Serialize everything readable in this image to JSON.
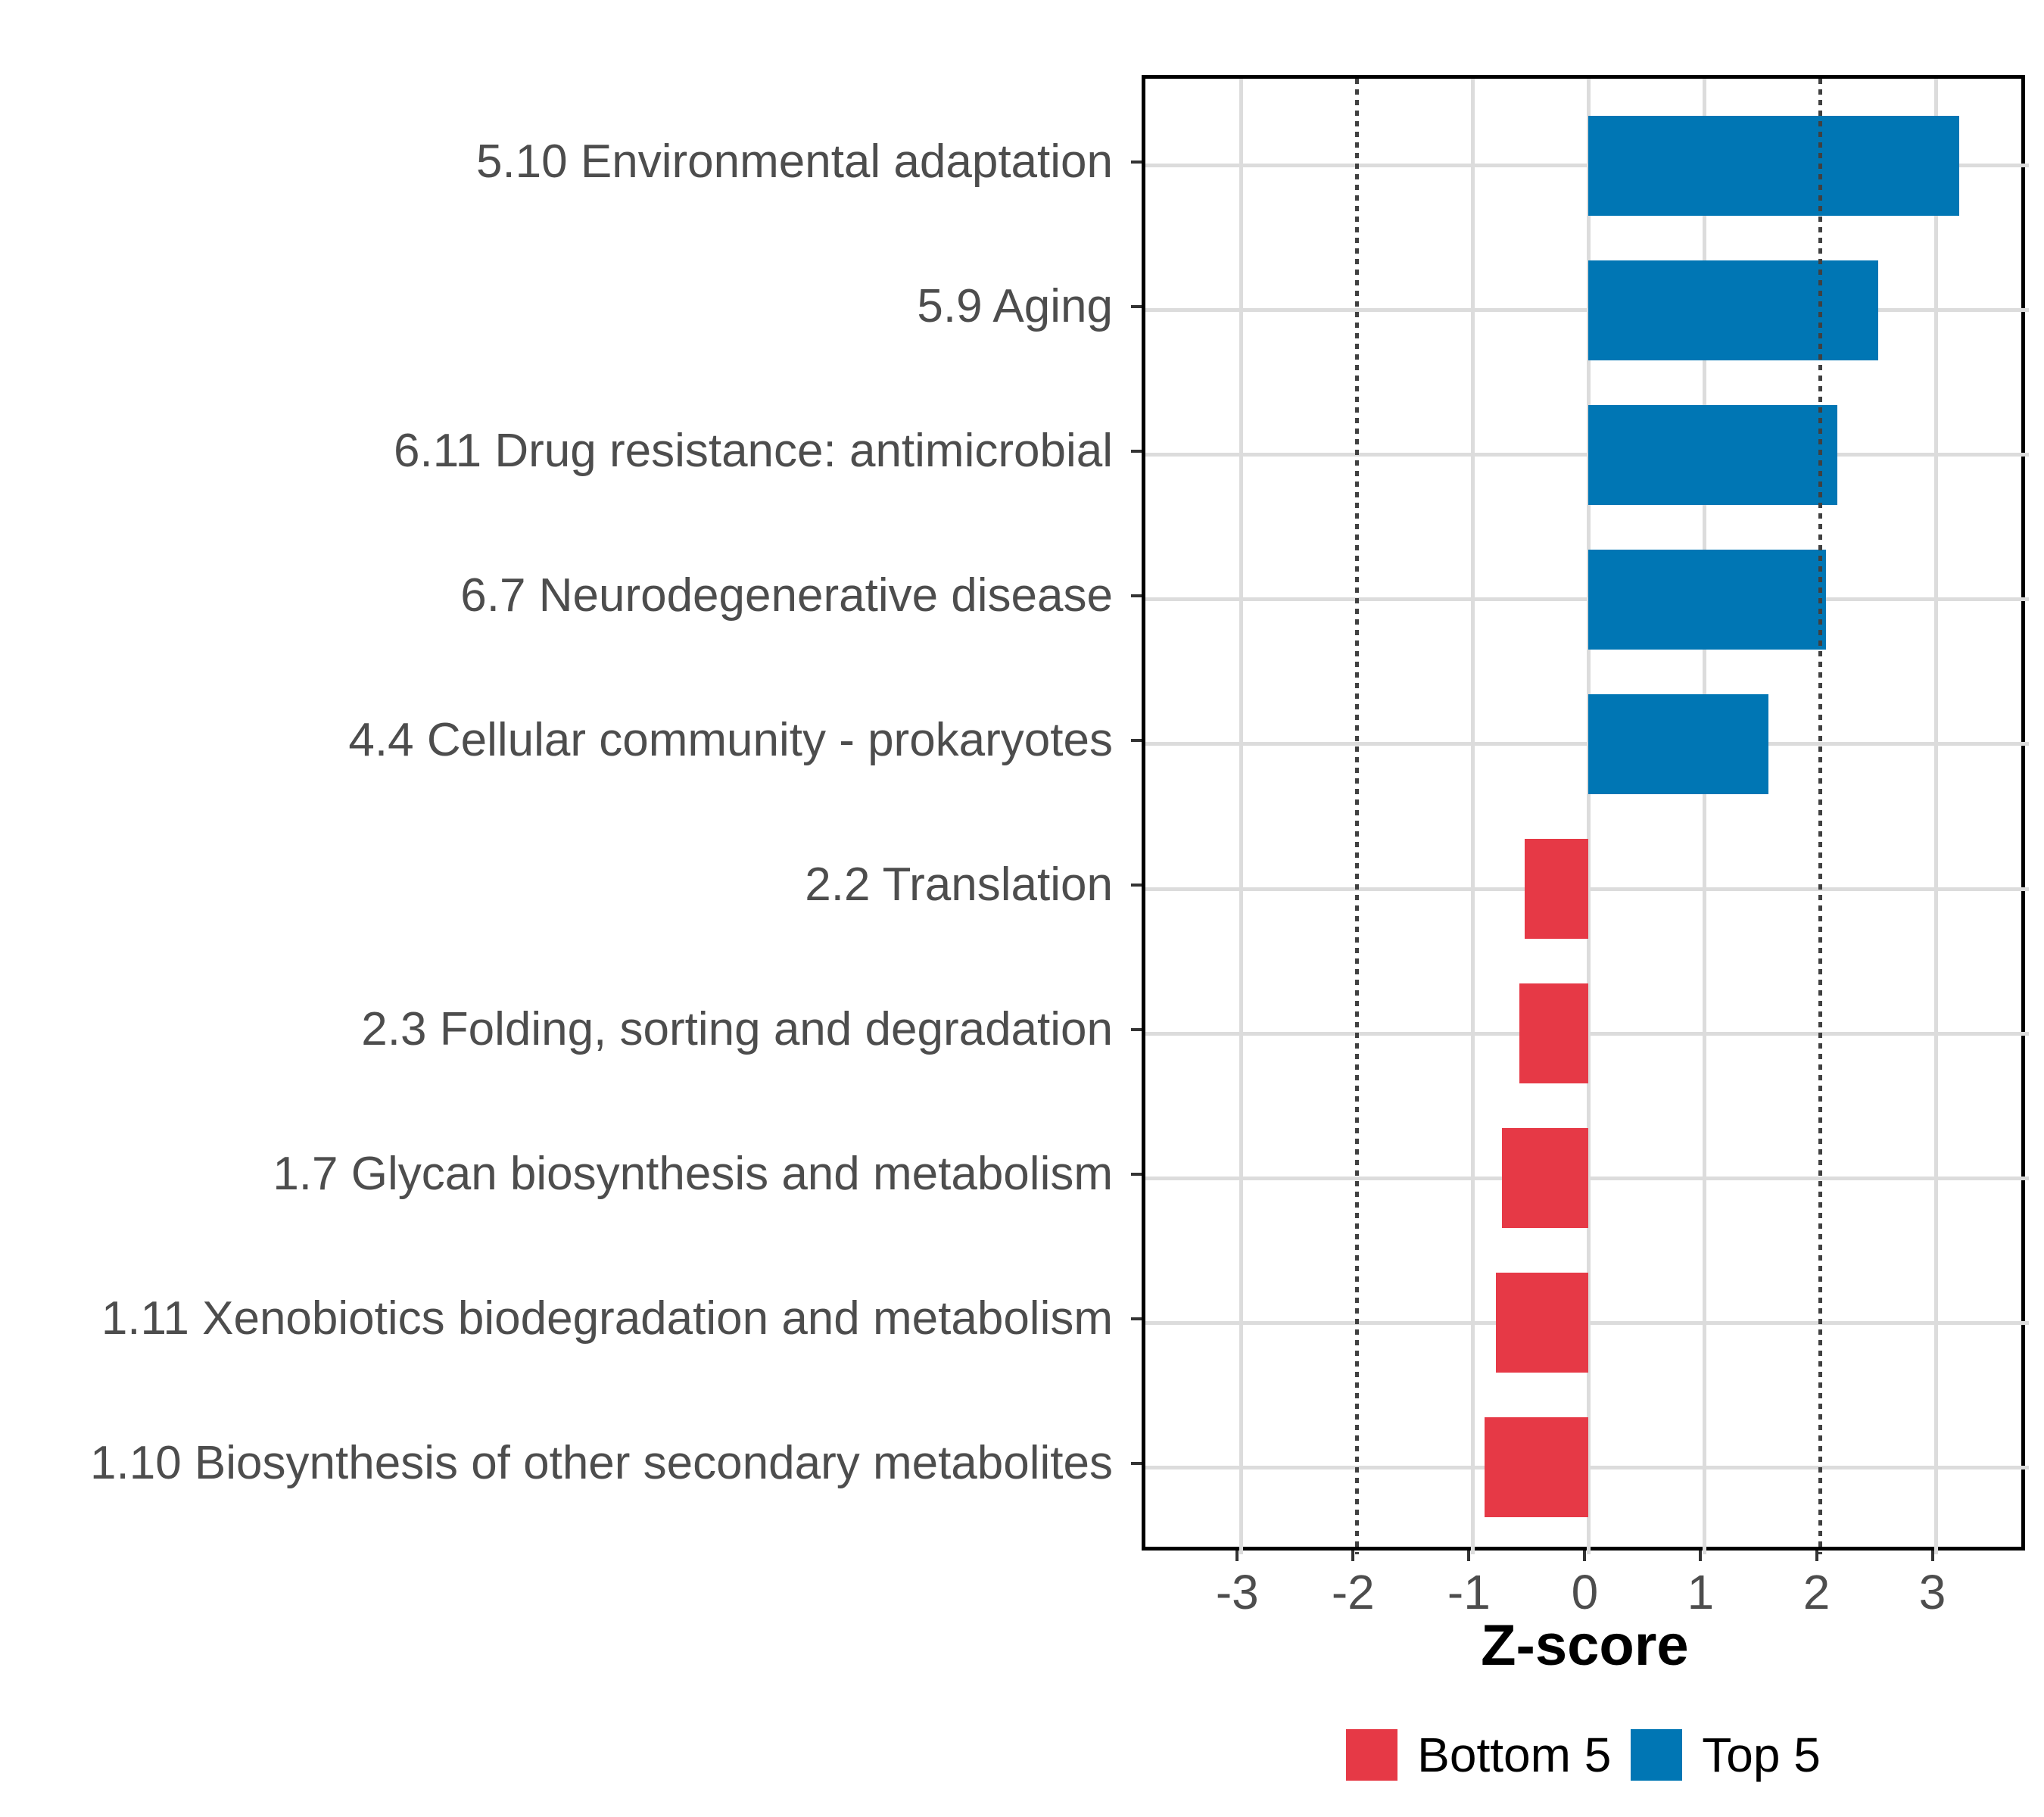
{
  "chart_data": {
    "type": "bar",
    "orientation": "horizontal",
    "title": "",
    "xlabel": "Z-score",
    "ylabel": "",
    "categories": [
      "5.10 Environmental adaptation",
      "5.9 Aging",
      "6.11 Drug resistance: antimicrobial",
      "6.7 Neurodegenerative disease",
      "4.4 Cellular community - prokaryotes",
      "2.2 Translation",
      "2.3 Folding, sorting and degradation",
      "1.7 Glycan biosynthesis and metabolism",
      "1.11 Xenobiotics biodegradation and metabolism",
      "1.10 Biosynthesis of other secondary metabolites"
    ],
    "values": [
      3.2,
      2.5,
      2.15,
      2.05,
      1.55,
      -0.55,
      -0.6,
      -0.75,
      -0.8,
      -0.9
    ],
    "groups": [
      "Top 5",
      "Top 5",
      "Top 5",
      "Top 5",
      "Top 5",
      "Bottom 5",
      "Bottom 5",
      "Bottom 5",
      "Bottom 5",
      "Bottom 5"
    ],
    "group_colors": {
      "Top 5": "#0076B4",
      "Bottom 5": "#E63946"
    },
    "xlim": [
      -3.825,
      3.8
    ],
    "x_ticks": [
      -3,
      -2,
      -1,
      0,
      1,
      2,
      3
    ],
    "x_tick_labels": [
      "-3",
      "-2",
      "-1",
      "0",
      "1",
      "2",
      "3"
    ],
    "reference_lines": [
      -2,
      2
    ],
    "grid": true,
    "legend_position": "bottom",
    "legend": {
      "entries": [
        {
          "label": "Bottom 5",
          "color": "#E63946"
        },
        {
          "label": "Top 5",
          "color": "#0076B4"
        }
      ]
    },
    "colors": {
      "gridline": "#DCDCDC",
      "reference_line": "#404040",
      "axis_text": "#4D4D4D",
      "panel_border": "#000000"
    }
  }
}
